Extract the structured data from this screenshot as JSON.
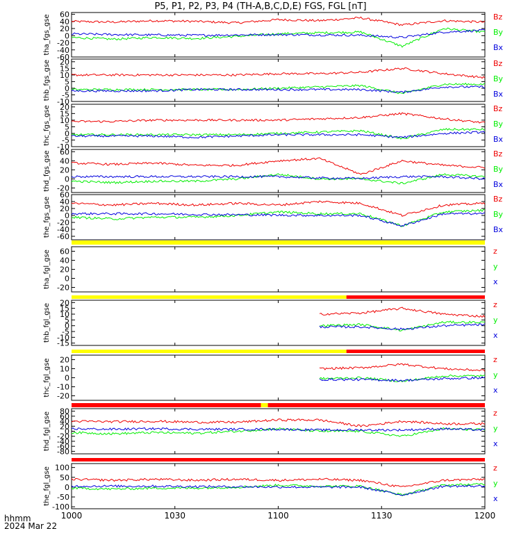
{
  "title": "P5, P1, P2, P3, P4 (TH-A,B,C,D,E) FGS, FGL [nT]",
  "footer": {
    "time_label": "hhmm",
    "date_label": "2024 Mar 22"
  },
  "colors": {
    "x": "#0000dd",
    "y": "#00ee00",
    "z": "#ee0000",
    "bar_ok": "#ffff00",
    "bar_bad": "#ff0000"
  },
  "chart_data": [
    {
      "type": "line",
      "ylabel": "tha_fgs_gse",
      "yticks": [
        "60",
        "40",
        "20",
        "0",
        "-20",
        "-40",
        "-60"
      ],
      "ylim": [
        -60,
        65
      ],
      "legend": [
        "Bz",
        "By",
        "Bx"
      ],
      "x_range": [
        "1000",
        "1200"
      ],
      "series": [
        {
          "name": "Bz",
          "component": "z",
          "values": [
            40,
            38,
            42,
            40,
            36,
            45,
            42,
            50,
            30,
            42,
            38
          ]
        },
        {
          "name": "By",
          "component": "y",
          "values": [
            -5,
            -10,
            -5,
            -8,
            -2,
            5,
            8,
            10,
            -30,
            20,
            10
          ]
        },
        {
          "name": "Bx",
          "component": "x",
          "values": [
            5,
            3,
            2,
            1,
            2,
            3,
            2,
            1,
            -5,
            10,
            15
          ]
        }
      ]
    },
    {
      "type": "line",
      "ylabel": "thb_fgs_gse",
      "yticks": [
        "20",
        "15",
        "10",
        "5",
        "0",
        "-5",
        "-10"
      ],
      "ylim": [
        -10,
        22
      ],
      "legend": [
        "Bz",
        "By",
        "Bx"
      ],
      "x_range": [
        "1000",
        "1200"
      ],
      "series": [
        {
          "name": "Bz",
          "component": "z",
          "values": [
            10,
            10,
            10,
            10,
            10,
            11,
            11,
            12,
            15,
            11,
            8
          ]
        },
        {
          "name": "By",
          "component": "y",
          "values": [
            -1,
            -1,
            -1,
            -1,
            -1,
            0,
            1,
            2,
            -4,
            3,
            3
          ]
        },
        {
          "name": "Bx",
          "component": "x",
          "values": [
            -2,
            -2,
            -2,
            -1,
            -1,
            -1,
            -1,
            -1,
            -3,
            1,
            1
          ]
        }
      ]
    },
    {
      "type": "line",
      "ylabel": "thc_fgs_gse",
      "yticks": [
        "20",
        "15",
        "10",
        "5",
        "0",
        "-5",
        "-10"
      ],
      "ylim": [
        -10,
        22
      ],
      "legend": [
        "Bz",
        "By",
        "Bx"
      ],
      "x_range": [
        "1000",
        "1200"
      ],
      "series": [
        {
          "name": "Bz",
          "component": "z",
          "values": [
            9,
            9,
            10,
            10,
            10,
            10,
            11,
            12,
            15,
            11,
            8
          ]
        },
        {
          "name": "By",
          "component": "y",
          "values": [
            -1,
            -1,
            -1,
            -1,
            -1,
            0,
            1,
            2,
            -4,
            3,
            3
          ]
        },
        {
          "name": "Bx",
          "component": "x",
          "values": [
            -2,
            -2,
            -2,
            -3,
            -2,
            -1,
            -1,
            -1,
            -3,
            0,
            1
          ]
        }
      ]
    },
    {
      "type": "line",
      "ylabel": "thd_fgs_gse",
      "yticks": [
        "60",
        "40",
        "20",
        "0",
        "-20"
      ],
      "ylim": [
        -30,
        65
      ],
      "legend": [
        "Bz",
        "By",
        "Bx"
      ],
      "x_range": [
        "1000",
        "1200"
      ],
      "series": [
        {
          "name": "Bz",
          "component": "z",
          "values": [
            35,
            32,
            35,
            30,
            30,
            40,
            45,
            10,
            40,
            30,
            25
          ]
        },
        {
          "name": "By",
          "component": "y",
          "values": [
            -5,
            -8,
            -5,
            -5,
            0,
            10,
            0,
            0,
            -10,
            10,
            5
          ]
        },
        {
          "name": "Bx",
          "component": "x",
          "values": [
            5,
            5,
            5,
            5,
            5,
            5,
            2,
            1,
            5,
            5,
            0
          ]
        }
      ]
    },
    {
      "type": "line",
      "ylabel": "the_fgs_gse",
      "yticks": [
        "60",
        "40",
        "20",
        "0",
        "-20",
        "-40",
        "-60"
      ],
      "ylim": [
        -70,
        60
      ],
      "legend": [
        "Bz",
        "By",
        "Bx"
      ],
      "x_range": [
        "1000",
        "1200"
      ],
      "series": [
        {
          "name": "Bz",
          "component": "z",
          "values": [
            35,
            30,
            35,
            30,
            35,
            30,
            40,
            35,
            0,
            30,
            35
          ]
        },
        {
          "name": "By",
          "component": "y",
          "values": [
            -5,
            -10,
            -5,
            -5,
            0,
            10,
            5,
            5,
            -30,
            10,
            15
          ]
        },
        {
          "name": "Bx",
          "component": "x",
          "values": [
            5,
            5,
            5,
            3,
            2,
            1,
            0,
            0,
            -30,
            5,
            5
          ]
        }
      ]
    },
    {
      "type": "line",
      "ylabel": "tha_fgl_gse",
      "yticks": [
        "60",
        "40",
        "20",
        "0",
        "-20"
      ],
      "ylim": [
        -30,
        70
      ],
      "legend": [
        "z",
        "y",
        "x"
      ],
      "x_range": [
        "1000",
        "1200"
      ],
      "series": []
    },
    {
      "type": "line",
      "ylabel": "thb_fgl_gse",
      "yticks": [
        "20",
        "15",
        "10",
        "5",
        "0",
        "-5",
        "-10",
        "-15"
      ],
      "ylim": [
        -17,
        22
      ],
      "legend": [
        "z",
        "y",
        "x"
      ],
      "x_range": [
        "1000",
        "1200"
      ],
      "series": [
        {
          "name": "z",
          "component": "z",
          "values": [
            null,
            null,
            null,
            null,
            null,
            null,
            10,
            11,
            15,
            10,
            8
          ]
        },
        {
          "name": "y",
          "component": "y",
          "values": [
            null,
            null,
            null,
            null,
            null,
            null,
            0,
            1,
            -4,
            3,
            3
          ]
        },
        {
          "name": "x",
          "component": "x",
          "values": [
            null,
            null,
            null,
            null,
            null,
            null,
            -1,
            -1,
            -3,
            0,
            1
          ]
        }
      ]
    },
    {
      "type": "line",
      "ylabel": "thc_fgl_gse",
      "yticks": [
        "20",
        "10",
        "0",
        "-10",
        "-20"
      ],
      "ylim": [
        -25,
        25
      ],
      "legend": [
        "z",
        "y",
        "x"
      ],
      "x_range": [
        "1000",
        "1200"
      ],
      "series": [
        {
          "name": "z",
          "component": "z",
          "values": [
            null,
            null,
            null,
            null,
            null,
            null,
            10,
            11,
            15,
            10,
            8
          ]
        },
        {
          "name": "y",
          "component": "y",
          "values": [
            null,
            null,
            null,
            null,
            null,
            null,
            -1,
            0,
            -4,
            2,
            2
          ]
        },
        {
          "name": "x",
          "component": "x",
          "values": [
            null,
            null,
            null,
            null,
            null,
            null,
            -2,
            -2,
            -3,
            -1,
            0
          ]
        }
      ]
    },
    {
      "type": "line",
      "ylabel": "thd_fgl_gse",
      "yticks": [
        "80",
        "60",
        "40",
        "20",
        "0",
        "-20",
        "-40",
        "-60",
        "-80"
      ],
      "ylim": [
        -90,
        90
      ],
      "legend": [
        "z",
        "y",
        "x"
      ],
      "x_range": [
        "1000",
        "1200"
      ],
      "series": [
        {
          "name": "z",
          "component": "z",
          "values": [
            40,
            38,
            40,
            36,
            36,
            45,
            45,
            20,
            40,
            30,
            30
          ]
        },
        {
          "name": "y",
          "component": "y",
          "values": [
            -5,
            -10,
            -5,
            -8,
            0,
            10,
            0,
            0,
            -20,
            10,
            5
          ]
        },
        {
          "name": "x",
          "component": "x",
          "values": [
            10,
            8,
            10,
            8,
            8,
            8,
            5,
            5,
            5,
            10,
            5
          ]
        }
      ]
    },
    {
      "type": "line",
      "ylabel": "the_fgl_gse",
      "yticks": [
        "100",
        "50",
        "0",
        "-50",
        "-100"
      ],
      "ylim": [
        -110,
        120
      ],
      "legend": [
        "z",
        "y",
        "x"
      ],
      "x_range": [
        "1000",
        "1200"
      ],
      "series": [
        {
          "name": "z",
          "component": "z",
          "values": [
            40,
            35,
            40,
            35,
            40,
            35,
            40,
            35,
            0,
            35,
            40
          ]
        },
        {
          "name": "y",
          "component": "y",
          "values": [
            -5,
            -10,
            -5,
            -5,
            0,
            10,
            5,
            5,
            -40,
            10,
            15
          ]
        },
        {
          "name": "x",
          "component": "x",
          "values": [
            5,
            5,
            5,
            3,
            2,
            1,
            0,
            0,
            -40,
            5,
            5
          ]
        }
      ]
    }
  ],
  "x_axis": {
    "ticks": [
      "1000",
      "1030",
      "1100",
      "1130",
      "1200"
    ]
  },
  "quality_bars": [
    {
      "segments": [
        {
          "from": 0,
          "to": 1,
          "state": "ok"
        }
      ]
    },
    {
      "segments": [
        {
          "from": 0,
          "to": 0.665,
          "state": "ok"
        },
        {
          "from": 0.665,
          "to": 1,
          "state": "bad"
        }
      ]
    },
    {
      "segments": [
        {
          "from": 0,
          "to": 0.665,
          "state": "ok"
        },
        {
          "from": 0.665,
          "to": 1,
          "state": "bad"
        }
      ]
    },
    {
      "segments": [
        {
          "from": 0,
          "to": 0.458,
          "state": "bad"
        },
        {
          "from": 0.458,
          "to": 0.475,
          "state": "ok"
        },
        {
          "from": 0.475,
          "to": 1,
          "state": "bad"
        }
      ]
    },
    {
      "segments": [
        {
          "from": 0,
          "to": 1,
          "state": "bad"
        }
      ]
    }
  ]
}
